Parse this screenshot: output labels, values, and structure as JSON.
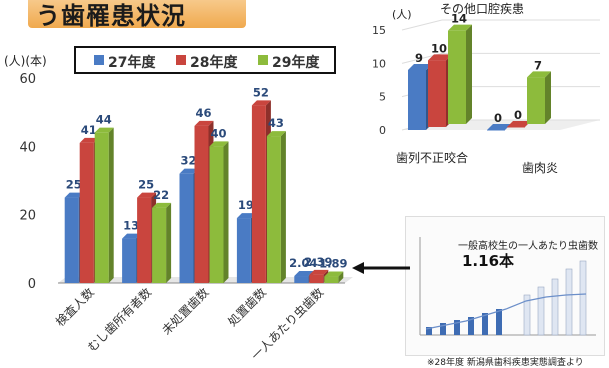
{
  "banner_title": "う歯罹患状況",
  "main_chart": {
    "chart_data": {
      "type": "bar",
      "unit_label": "(人)(本)",
      "categories": [
        "検査人数",
        "むし歯所有者数",
        "未処置歯数",
        "処置歯数",
        "一人あたり虫歯数"
      ],
      "series": [
        {
          "name": "27年度",
          "color": "#4a7bc4",
          "values": [
            25,
            13,
            32,
            19,
            2.04
          ],
          "labels": [
            "25",
            "13",
            "32",
            "19",
            "2.04"
          ]
        },
        {
          "name": "28年度",
          "color": "#c9453e",
          "values": [
            41,
            25,
            46,
            52,
            2.39
          ],
          "labels": [
            "41",
            "25",
            "46",
            "52",
            "2.39"
          ]
        },
        {
          "name": "29年度",
          "color": "#8dbb3c",
          "values": [
            44,
            22,
            40,
            43,
            1.89
          ],
          "labels": [
            "44",
            "22",
            "40",
            "43",
            "1.89"
          ]
        }
      ],
      "yticks": [
        "0",
        "20",
        "40",
        "60"
      ],
      "ylim": [
        0,
        60
      ],
      "grid": false,
      "legend": "top"
    }
  },
  "side_chart": {
    "chart_data": {
      "type": "bar",
      "title": "その他口腔疾患",
      "unit_label": "(人)",
      "categories": [
        "歯列不正咬合",
        "歯肉炎"
      ],
      "series": [
        {
          "name": "27年度",
          "color": "#4a7bc4",
          "values": [
            9,
            0
          ],
          "labels": [
            "9",
            "0"
          ]
        },
        {
          "name": "28年度",
          "color": "#c9453e",
          "values": [
            10,
            0
          ],
          "labels": [
            "10",
            "0"
          ]
        },
        {
          "name": "29年度",
          "color": "#8dbb3c",
          "values": [
            14,
            7
          ],
          "labels": [
            "14",
            "7"
          ]
        }
      ],
      "yticks": [
        "0",
        "5",
        "10",
        "15"
      ],
      "ylim": [
        0,
        15
      ]
    }
  },
  "inset": {
    "annotation": "一般高校生の一人あたり虫歯数",
    "value": "1.16本",
    "source": "※28年度 新潟県歯科疾患実態調査より"
  }
}
